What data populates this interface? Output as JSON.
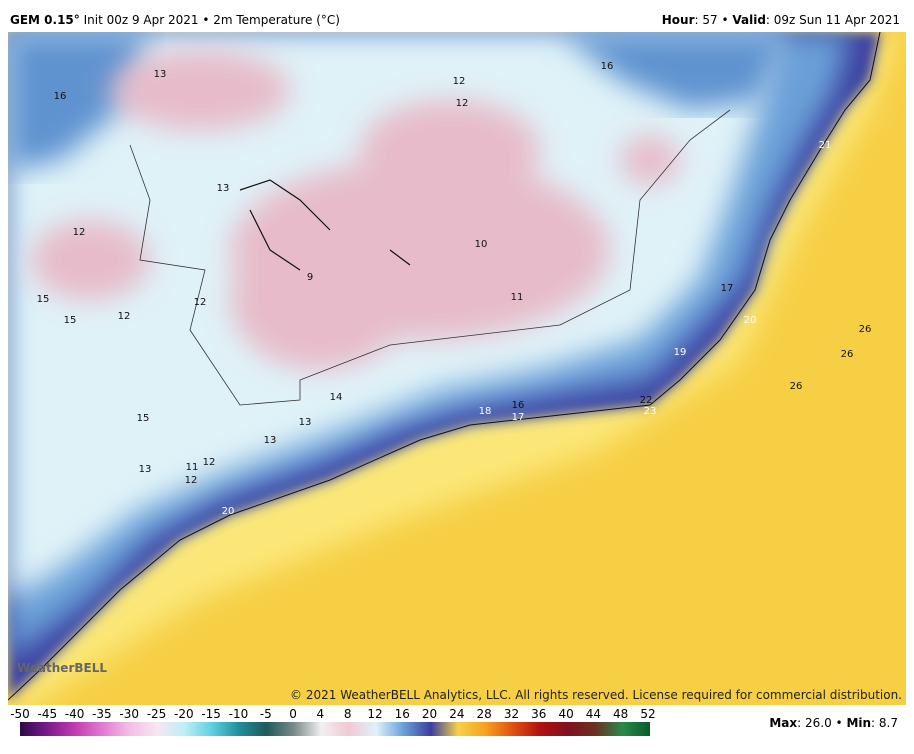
{
  "header": {
    "left": [
      {
        "text": "GEM 0.15°",
        "bold": true
      },
      {
        "text": " Init 00z 9 Apr 2021 • 2m Temperature (°C)",
        "bold": false
      }
    ],
    "right": [
      {
        "text": "Hour",
        "bold": true
      },
      {
        "text": ": 57 • ",
        "bold": false
      },
      {
        "text": "Valid",
        "bold": true
      },
      {
        "text": ": 09z Sun 11 Apr 2021",
        "bold": false
      }
    ]
  },
  "map": {
    "labels": [
      13,
      12,
      16,
      16,
      12,
      13,
      12,
      10,
      9,
      11,
      17,
      15,
      12,
      15,
      12,
      26,
      20,
      26,
      19,
      26,
      14,
      22,
      23,
      18,
      16,
      17,
      15,
      13,
      13,
      12,
      13,
      11,
      12,
      20,
      21
    ],
    "logo": "WeatherBELL",
    "copyright": "© 2021 WeatherBELL Analytics, LLC. All rights reserved. License required for commercial distribution."
  },
  "colorbar": {
    "ticks": [
      -50,
      -45,
      -40,
      -35,
      -30,
      -25,
      -20,
      -15,
      -10,
      -5,
      0,
      4,
      8,
      12,
      16,
      20,
      24,
      28,
      32,
      36,
      40,
      44,
      48,
      52
    ],
    "colors": [
      "#2a0a4a",
      "#7a1a8a",
      "#c23bb0",
      "#e07ad0",
      "#f2bfe6",
      "#f7e6f2",
      "#bfeef7",
      "#5fd0e0",
      "#1f8f9a",
      "#1f5a5a",
      "#7a8a8a",
      "#f0f0f0",
      "#f2c8d4",
      "#dff2f8",
      "#6aa0d8",
      "#3a3fa0",
      "#f7d14a",
      "#f5a020",
      "#e05010",
      "#b01010",
      "#801020",
      "#6a3020",
      "#2a8a4a",
      "#0a5a2a"
    ]
  },
  "footer": [
    {
      "text": "Max",
      "bold": true
    },
    {
      "text": ": 26.0 • ",
      "bold": false
    },
    {
      "text": "Min",
      "bold": true
    },
    {
      "text": ": 8.7",
      "bold": false
    }
  ]
}
